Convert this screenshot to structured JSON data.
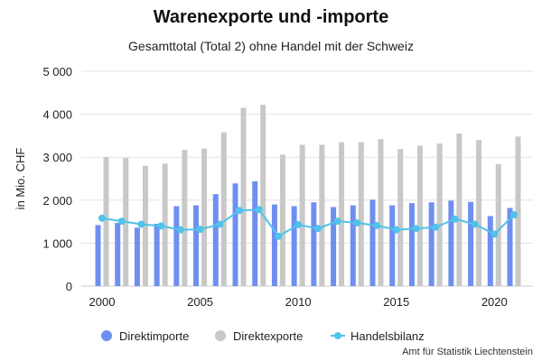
{
  "chart_data": {
    "type": "bar",
    "title": "Warenexporte und -importe",
    "subtitle": "Gesamttotal (Total 2) ohne Handel mit der Schweiz",
    "ylabel": "in Mio. CHF",
    "xlabel": "",
    "ylim": [
      0,
      5000
    ],
    "yticks": [
      0,
      1000,
      2000,
      3000,
      4000,
      5000
    ],
    "ytick_labels": [
      "0",
      "1 000",
      "2 000",
      "3 000",
      "4 000",
      "5 000"
    ],
    "xticks": [
      2000,
      2005,
      2010,
      2015,
      2020
    ],
    "grid": true,
    "legend_position": "bottom",
    "x": [
      2000,
      2001,
      2002,
      2003,
      2004,
      2005,
      2006,
      2007,
      2008,
      2009,
      2010,
      2011,
      2012,
      2013,
      2014,
      2015,
      2016,
      2017,
      2018,
      2019,
      2020,
      2021
    ],
    "series": [
      {
        "name": "Direktimporte",
        "type": "bar",
        "color": "#6f8ff0",
        "values": [
          1420,
          1470,
          1360,
          1450,
          1860,
          1880,
          2140,
          2390,
          2440,
          1900,
          1860,
          1950,
          1840,
          1880,
          2010,
          1880,
          1930,
          1950,
          1990,
          1960,
          1630,
          1820
        ]
      },
      {
        "name": "Direktexporte",
        "type": "bar",
        "color": "#c8c8c8",
        "values": [
          3000,
          2980,
          2800,
          2850,
          3170,
          3200,
          3580,
          4150,
          4220,
          3060,
          3290,
          3290,
          3350,
          3350,
          3420,
          3190,
          3270,
          3320,
          3550,
          3400,
          2840,
          3480
        ]
      },
      {
        "name": "Handelsbilanz",
        "type": "line",
        "color": "#4fc3ea",
        "values": [
          1580,
          1510,
          1440,
          1400,
          1310,
          1320,
          1440,
          1760,
          1780,
          1160,
          1430,
          1340,
          1510,
          1470,
          1410,
          1310,
          1340,
          1370,
          1560,
          1440,
          1210,
          1660
        ]
      }
    ],
    "credit": "Amt für Statistik Liechtenstein"
  }
}
